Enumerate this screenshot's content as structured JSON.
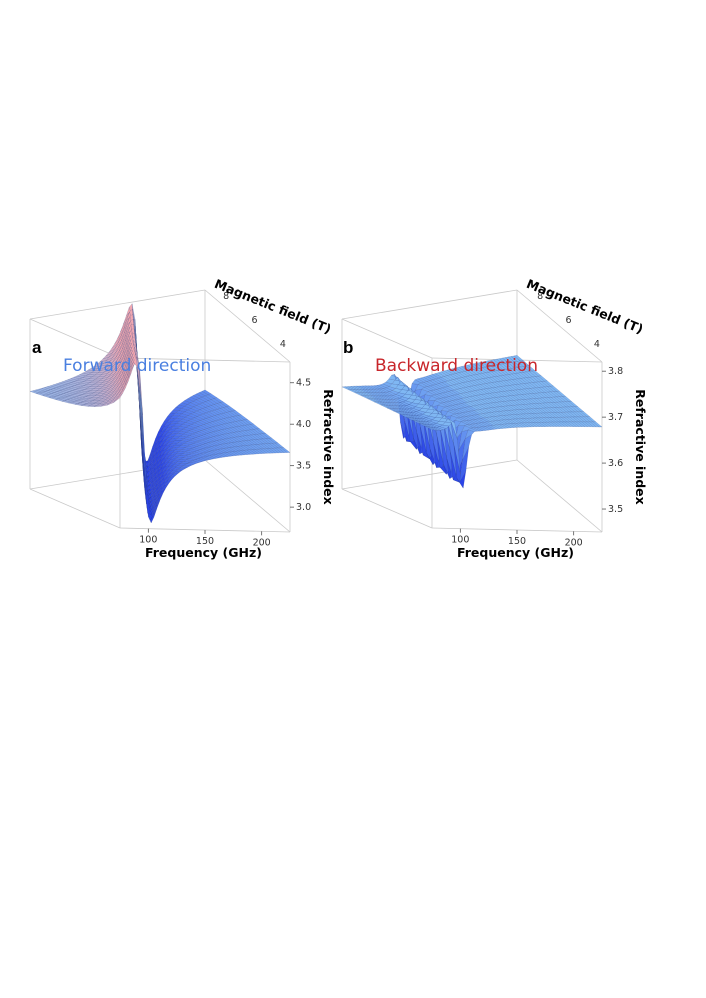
{
  "chart_data": [
    {
      "type": "surface3d",
      "panel": "a",
      "title": "Forward direction",
      "title_color": "#4a7fe0",
      "xlabel": "Frequency (GHz)",
      "ylabel": "Magnetic field (T)",
      "zlabel": "Refractive index",
      "x_ticks": [
        100,
        150,
        200
      ],
      "y_ticks": [
        4,
        6,
        8
      ],
      "z_ticks": [
        "4.5",
        "4.0",
        "3.5",
        "3.0"
      ],
      "xlim": [
        75,
        225
      ],
      "ylim": [
        3,
        9
      ],
      "zlim": [
        2.7,
        4.75
      ],
      "baseline": 3.75,
      "resonance_slope_ghz_per_tesla": 12,
      "resonance_offset_ghz": 60,
      "peak": 4.75,
      "dip": 2.7,
      "colors": {
        "low": "#2a43e8",
        "flat": "#7fb7f3",
        "high": "#f2a7b0"
      }
    },
    {
      "type": "surface3d",
      "panel": "b",
      "title": "Backward direction",
      "title_color": "#c8262b",
      "xlabel": "Frequency (GHz)",
      "ylabel": "Magnetic field (T)",
      "zlabel": "Refractive index",
      "x_ticks": [
        100,
        150,
        200
      ],
      "y_ticks": [
        4,
        6,
        8
      ],
      "z_ticks": [
        "3.8",
        "3.7",
        "3.6",
        "3.5"
      ],
      "xlim": [
        75,
        225
      ],
      "ylim": [
        3,
        9
      ],
      "zlim": [
        3.45,
        3.82
      ],
      "baseline": 3.68,
      "resonance_slope_ghz_per_tesla": 12,
      "resonance_offset_ghz": 60,
      "peak": 3.76,
      "dip": 3.46,
      "colors": {
        "low": "#2a43e8",
        "flat": "#7fb7f3",
        "high": "#f2a7b0"
      }
    }
  ]
}
